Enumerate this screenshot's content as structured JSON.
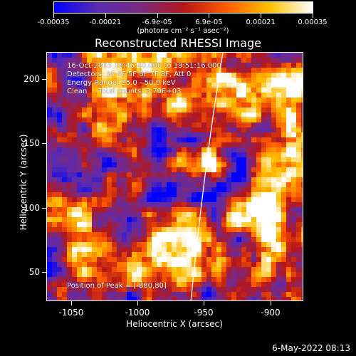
{
  "colorbar": {
    "tick_labels": [
      "-0.00035",
      "-0.00021",
      "-6.9e-05",
      "6.9e-05",
      "0.00021",
      "0.00035"
    ],
    "units": "(photons cm⁻² s⁻¹ asec⁻²)",
    "range": [
      -0.00035,
      0.00035
    ]
  },
  "plot": {
    "title": "Reconstructed RHESSI Image",
    "info": {
      "time": "16-Oct-2003 19:46:40.000 to 19:51:16.000",
      "detectors": "Detectors: 3F 4F 5F 6F 7F 8F, Att 0",
      "energy": "Energy Range: 25.0 - 50.0 keV",
      "clean": "Clean     Total counts: 3.79E+03",
      "peak": "Position of Peak = [-880,80]"
    },
    "xlabel": "Heliocentric X (arcsec)",
    "ylabel": "Heliocentric Y (arcsec)",
    "xtick_labels": [
      "-1050",
      "-1000",
      "-950",
      "-900"
    ],
    "ytick_labels": [
      "200",
      "150",
      "100",
      "50"
    ]
  },
  "chart_data": {
    "type": "heatmap",
    "title": "Reconstructed RHESSI Image",
    "xlabel": "Heliocentric X (arcsec)",
    "ylabel": "Heliocentric Y (arcsec)",
    "xlim": [
      -1068,
      -875
    ],
    "ylim": [
      28,
      218
    ],
    "xticks": [
      -1050,
      -1000,
      -950,
      -900
    ],
    "yticks": [
      50,
      100,
      150,
      200
    ],
    "colorbar_range": [
      -0.00035,
      0.00035
    ],
    "colormap": [
      "#0000ff",
      "#5a2bb0",
      "#7a2a82",
      "#b4161a",
      "#ff5a00",
      "#ffc000",
      "#ffffff"
    ],
    "peak_position": [
      -880,
      80
    ],
    "limb_color": "#ffffff"
  },
  "footer": {
    "timestamp": "6-May-2022 08:13"
  }
}
